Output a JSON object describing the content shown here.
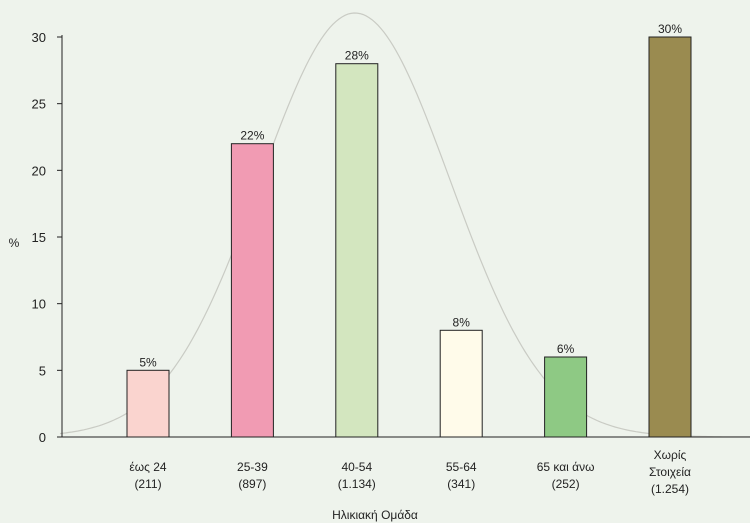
{
  "chart_data": {
    "type": "bar",
    "title": "",
    "xlabel": "Ηλικιακή Ομάδα",
    "ylabel": "%",
    "ylim": [
      0,
      30
    ],
    "yticks": [
      0,
      5,
      10,
      15,
      20,
      25,
      30
    ],
    "categories": [
      [
        "έως 24",
        "(211)"
      ],
      [
        "25-39",
        "(897)"
      ],
      [
        "40-54",
        "(1.134)"
      ],
      [
        "55-64",
        "(341)"
      ],
      [
        "65 και άνω",
        "(252)"
      ],
      [
        "Χωρίς",
        "Στοιχεία",
        "(1.254)"
      ]
    ],
    "values": [
      5,
      22,
      28,
      8,
      6,
      30
    ],
    "data_labels": [
      "5%",
      "22%",
      "28%",
      "8%",
      "6%",
      "30%"
    ],
    "bar_colors": [
      "#fad4cf",
      "#f19bb3",
      "#d3e6bf",
      "#fffbea",
      "#8ec984",
      "#9a8b50"
    ],
    "grid": false,
    "legend": "none",
    "background": "#eef3ec",
    "overlay": "normal-distribution-curve"
  }
}
